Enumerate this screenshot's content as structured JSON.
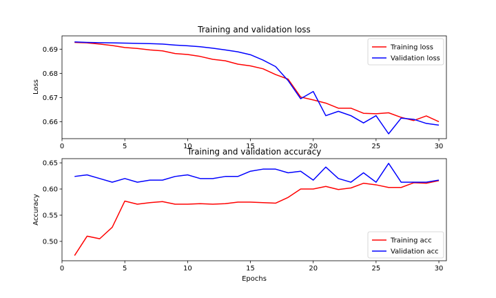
{
  "chart_data": [
    {
      "type": "line",
      "title": "Training and validation loss",
      "xlabel": "",
      "ylabel": "Loss",
      "xlim": [
        0.0,
        30.6
      ],
      "ylim": [
        0.653,
        0.6955
      ],
      "xticks": [
        0,
        5,
        10,
        15,
        20,
        25,
        30
      ],
      "yticks": [
        0.66,
        0.67,
        0.68,
        0.69
      ],
      "ytick_labels": [
        "0.66",
        "0.67",
        "0.68",
        "0.69"
      ],
      "grid": false,
      "legend_position": "top-right",
      "series": [
        {
          "name": "Training loss",
          "color": "#ff0000",
          "x": [
            1,
            2,
            3,
            4,
            5,
            6,
            7,
            8,
            9,
            10,
            11,
            12,
            13,
            14,
            15,
            16,
            17,
            18,
            19,
            20,
            21,
            22,
            23,
            24,
            25,
            26,
            27,
            28,
            29,
            30
          ],
          "y": [
            0.6928,
            0.6926,
            0.6921,
            0.6915,
            0.6907,
            0.6903,
            0.6897,
            0.6893,
            0.6882,
            0.6878,
            0.687,
            0.6858,
            0.6852,
            0.6838,
            0.6831,
            0.6819,
            0.6795,
            0.6776,
            0.6702,
            0.669,
            0.6677,
            0.6656,
            0.6656,
            0.6635,
            0.6633,
            0.6637,
            0.6618,
            0.6605,
            0.6624,
            0.66
          ]
        },
        {
          "name": "Validation loss",
          "color": "#0000ff",
          "x": [
            1,
            2,
            3,
            4,
            5,
            6,
            7,
            8,
            9,
            10,
            11,
            12,
            13,
            14,
            15,
            16,
            17,
            18,
            19,
            20,
            21,
            22,
            23,
            24,
            25,
            26,
            27,
            28,
            29,
            30
          ],
          "y": [
            0.693,
            0.6928,
            0.6927,
            0.6926,
            0.6925,
            0.6924,
            0.6923,
            0.6921,
            0.6917,
            0.6914,
            0.691,
            0.6904,
            0.6897,
            0.6889,
            0.6877,
            0.6855,
            0.6828,
            0.677,
            0.6695,
            0.6725,
            0.6625,
            0.6643,
            0.6625,
            0.6595,
            0.6625,
            0.655,
            0.6615,
            0.661,
            0.6593,
            0.6586
          ]
        }
      ]
    },
    {
      "type": "line",
      "title": "Training and validation accuracy",
      "xlabel": "Epochs",
      "ylabel": "Accuracy",
      "xlim": [
        0.0,
        30.6
      ],
      "ylim": [
        0.463,
        0.658
      ],
      "xticks": [
        0,
        5,
        10,
        15,
        20,
        25,
        30
      ],
      "yticks": [
        0.5,
        0.55,
        0.6,
        0.65
      ],
      "ytick_labels": [
        "0.50",
        "0.55",
        "0.60",
        "0.65"
      ],
      "grid": false,
      "legend_position": "bottom-right",
      "series": [
        {
          "name": "Training acc",
          "color": "#ff0000",
          "x": [
            1,
            2,
            3,
            4,
            5,
            6,
            7,
            8,
            9,
            10,
            11,
            12,
            13,
            14,
            15,
            16,
            17,
            18,
            19,
            20,
            21,
            22,
            23,
            24,
            25,
            26,
            27,
            28,
            29,
            30
          ],
          "y": [
            0.473,
            0.51,
            0.505,
            0.527,
            0.577,
            0.571,
            0.574,
            0.576,
            0.571,
            0.571,
            0.572,
            0.571,
            0.572,
            0.575,
            0.575,
            0.574,
            0.573,
            0.584,
            0.6,
            0.6,
            0.605,
            0.599,
            0.602,
            0.611,
            0.608,
            0.603,
            0.603,
            0.612,
            0.611,
            0.616
          ]
        },
        {
          "name": "Validation acc",
          "color": "#0000ff",
          "x": [
            1,
            2,
            3,
            4,
            5,
            6,
            7,
            8,
            9,
            10,
            11,
            12,
            13,
            14,
            15,
            16,
            17,
            18,
            19,
            20,
            21,
            22,
            23,
            24,
            25,
            26,
            27,
            28,
            29,
            30
          ],
          "y": [
            0.624,
            0.627,
            0.62,
            0.613,
            0.62,
            0.613,
            0.617,
            0.617,
            0.624,
            0.627,
            0.62,
            0.62,
            0.624,
            0.624,
            0.634,
            0.638,
            0.638,
            0.631,
            0.634,
            0.617,
            0.642,
            0.62,
            0.613,
            0.631,
            0.613,
            0.649,
            0.613,
            0.613,
            0.613,
            0.617
          ]
        }
      ]
    }
  ]
}
